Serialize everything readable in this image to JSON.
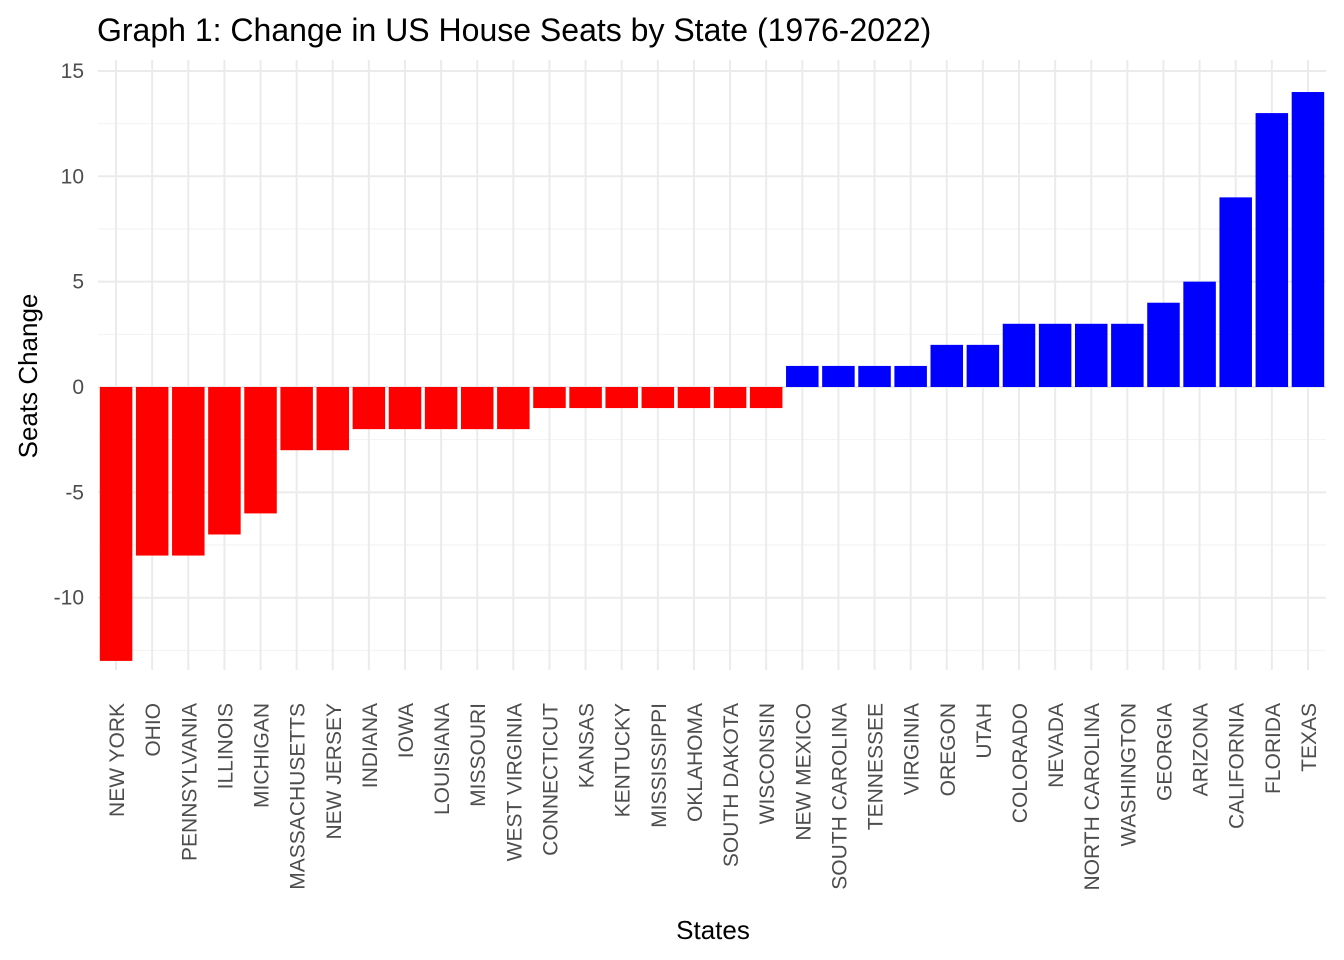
{
  "chart_data": {
    "type": "bar",
    "title": "Graph 1: Change in US House Seats by State (1976-2022)",
    "xlabel": "States",
    "ylabel": "Seats Change",
    "ylim": [
      -14,
      15
    ],
    "yticks": [
      -10,
      -5,
      0,
      5,
      10,
      15
    ],
    "grid": true,
    "colors": {
      "negative": "#ff0000",
      "positive": "#0000ff"
    },
    "categories": [
      "NEW YORK",
      "OHIO",
      "PENNSYLVANIA",
      "ILLINOIS",
      "MICHIGAN",
      "MASSACHUSETTS",
      "NEW JERSEY",
      "INDIANA",
      "IOWA",
      "LOUISIANA",
      "MISSOURI",
      "WEST VIRGINIA",
      "CONNECTICUT",
      "KANSAS",
      "KENTUCKY",
      "MISSISSIPPI",
      "OKLAHOMA",
      "SOUTH DAKOTA",
      "WISCONSIN",
      "NEW MEXICO",
      "SOUTH CAROLINA",
      "TENNESSEE",
      "VIRGINIA",
      "OREGON",
      "UTAH",
      "COLORADO",
      "NEVADA",
      "NORTH CAROLINA",
      "WASHINGTON",
      "GEORGIA",
      "ARIZONA",
      "CALIFORNIA",
      "FLORIDA",
      "TEXAS"
    ],
    "values": [
      -13,
      -8,
      -8,
      -7,
      -6,
      -3,
      -3,
      -2,
      -2,
      -2,
      -2,
      -2,
      -1,
      -1,
      -1,
      -1,
      -1,
      -1,
      -1,
      1,
      1,
      1,
      1,
      2,
      2,
      3,
      3,
      3,
      3,
      4,
      5,
      9,
      13,
      14
    ]
  }
}
